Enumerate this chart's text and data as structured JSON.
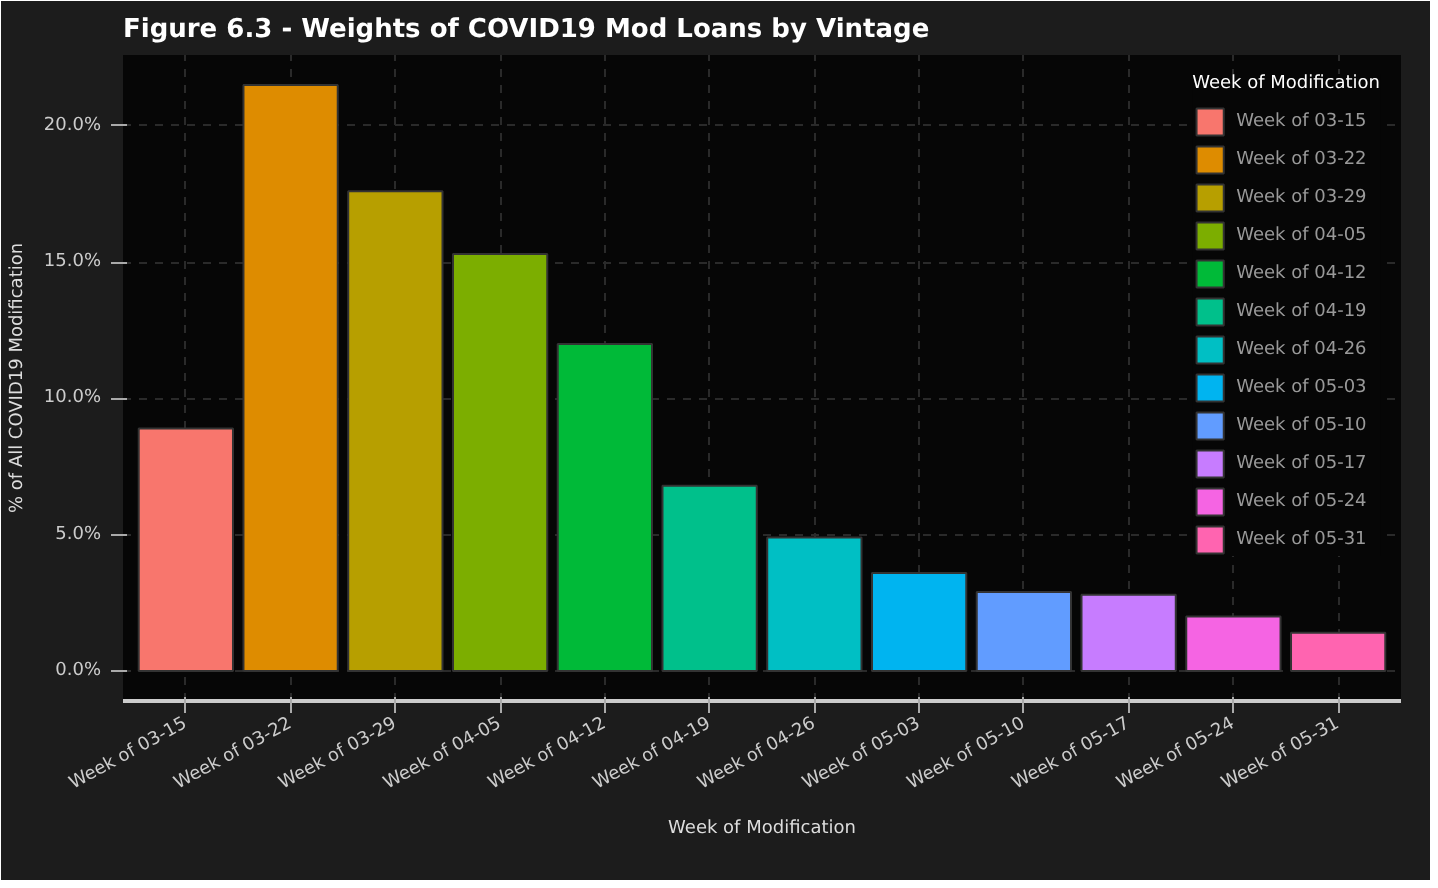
{
  "chart_data": {
    "type": "bar",
    "title": "Figure 6.3 - Weights of COVID19 Mod Loans by Vintage",
    "xlabel": "Week of Modification",
    "ylabel": "% of All COVID19 Modification",
    "legend_title": "Week of Modification",
    "categories": [
      "Week of 03-15",
      "Week of 03-22",
      "Week of 03-29",
      "Week of 04-05",
      "Week of 04-12",
      "Week of 04-19",
      "Week of 04-26",
      "Week of 05-03",
      "Week of 05-10",
      "Week of 05-17",
      "Week of 05-24",
      "Week of 05-31"
    ],
    "series": [
      {
        "name": "Week of 03-15",
        "color": "#f8766d",
        "values": [
          8.9,
          null,
          null,
          null,
          null,
          null,
          null,
          null,
          null,
          null,
          null,
          null
        ]
      },
      {
        "name": "Week of 03-22",
        "color": "#de8c00",
        "values": [
          null,
          21.5,
          null,
          null,
          null,
          null,
          null,
          null,
          null,
          null,
          null,
          null
        ]
      },
      {
        "name": "Week of 03-29",
        "color": "#b79f00",
        "values": [
          null,
          null,
          17.6,
          null,
          null,
          null,
          null,
          null,
          null,
          null,
          null,
          null
        ]
      },
      {
        "name": "Week of 04-05",
        "color": "#7cae00",
        "values": [
          null,
          null,
          null,
          15.3,
          null,
          null,
          null,
          null,
          null,
          null,
          null,
          null
        ]
      },
      {
        "name": "Week of 04-12",
        "color": "#00ba38",
        "values": [
          null,
          null,
          null,
          null,
          12.0,
          null,
          null,
          null,
          null,
          null,
          null,
          null
        ]
      },
      {
        "name": "Week of 04-19",
        "color": "#00c08b",
        "values": [
          null,
          null,
          null,
          null,
          null,
          6.8,
          null,
          null,
          null,
          null,
          null,
          null
        ]
      },
      {
        "name": "Week of 04-26",
        "color": "#00bfc4",
        "values": [
          null,
          null,
          null,
          null,
          null,
          null,
          4.9,
          null,
          null,
          null,
          null,
          null
        ]
      },
      {
        "name": "Week of 05-03",
        "color": "#00b4f0",
        "values": [
          null,
          null,
          null,
          null,
          null,
          null,
          null,
          3.6,
          null,
          null,
          null,
          null
        ]
      },
      {
        "name": "Week of 05-10",
        "color": "#619cff",
        "values": [
          null,
          null,
          null,
          null,
          null,
          null,
          null,
          null,
          2.9,
          null,
          null,
          null
        ]
      },
      {
        "name": "Week of 05-17",
        "color": "#c77cff",
        "values": [
          null,
          null,
          null,
          null,
          null,
          null,
          null,
          null,
          null,
          2.8,
          null,
          null
        ]
      },
      {
        "name": "Week of 05-24",
        "color": "#f564e3",
        "values": [
          null,
          null,
          null,
          null,
          null,
          null,
          null,
          null,
          null,
          null,
          2.0,
          null
        ]
      },
      {
        "name": "Week of 05-31",
        "color": "#ff64b0",
        "values": [
          null,
          null,
          null,
          null,
          null,
          null,
          null,
          null,
          null,
          null,
          null,
          1.4
        ]
      }
    ],
    "ylim": [
      -1.1,
      22.6
    ],
    "yticks": [
      {
        "value": 0,
        "label": "0.0%"
      },
      {
        "value": 5,
        "label": "5.0%"
      },
      {
        "value": 10,
        "label": "10.0%"
      },
      {
        "value": 15,
        "label": "15.0%"
      },
      {
        "value": 20,
        "label": "20.0%"
      }
    ],
    "grid": true,
    "legend": "top right"
  }
}
